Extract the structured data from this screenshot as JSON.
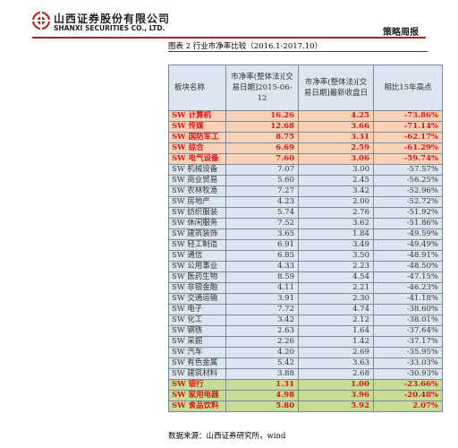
{
  "header": {
    "company_cn": "山西证券股份有限公司",
    "company_en": "SHANXI SECURITIES CO., LTD.",
    "report_type": "策略周报"
  },
  "caption": {
    "label": "图表 2  行业市净率比较（2016.1-2017.10）"
  },
  "table": {
    "headers": [
      "板块名称",
      "市净率(整体法)[交易日期]2015-06-12",
      "市净率(整体法)[交易日期]最新收盘日",
      "相比15年高点"
    ],
    "rows": [
      {
        "name": "SW 计算机",
        "pb_2015": "16.26",
        "pb_latest": "4.25",
        "change": "-73.86%",
        "group": "top"
      },
      {
        "name": "SW 传媒",
        "pb_2015": "12.68",
        "pb_latest": "3.66",
        "change": "-71.14%",
        "group": "top"
      },
      {
        "name": "SW 国防军工",
        "pb_2015": "8.75",
        "pb_latest": "3.31",
        "change": "-62.17%",
        "group": "top"
      },
      {
        "name": "SW 综合",
        "pb_2015": "6.69",
        "pb_latest": "2.59",
        "change": "-61.29%",
        "group": "top"
      },
      {
        "name": "SW 电气设备",
        "pb_2015": "7.60",
        "pb_latest": "3.06",
        "change": "-59.74%",
        "group": "top"
      },
      {
        "name": "SW 机械设备",
        "pb_2015": "7.07",
        "pb_latest": "3.00",
        "change": "-57.57%",
        "group": "plain"
      },
      {
        "name": "SW 商业贸易",
        "pb_2015": "5.60",
        "pb_latest": "2.45",
        "change": "-56.25%",
        "group": "plain"
      },
      {
        "name": "SW 农林牧渔",
        "pb_2015": "7.27",
        "pb_latest": "3.42",
        "change": "-52.96%",
        "group": "plain"
      },
      {
        "name": "SW 房地产",
        "pb_2015": "4.23",
        "pb_latest": "2.00",
        "change": "-52.72%",
        "group": "plain"
      },
      {
        "name": "SW 纺织服装",
        "pb_2015": "5.74",
        "pb_latest": "2.76",
        "change": "-51.92%",
        "group": "plain"
      },
      {
        "name": "SW 休闲服务",
        "pb_2015": "7.52",
        "pb_latest": "3.62",
        "change": "-51.86%",
        "group": "plain"
      },
      {
        "name": "SW 建筑装饰",
        "pb_2015": "3.65",
        "pb_latest": "1.84",
        "change": "-49.59%",
        "group": "plain"
      },
      {
        "name": "SW 轻工制造",
        "pb_2015": "6.91",
        "pb_latest": "3.49",
        "change": "-49.49%",
        "group": "plain"
      },
      {
        "name": "SW 通信",
        "pb_2015": "6.85",
        "pb_latest": "3.50",
        "change": "-48.91%",
        "group": "plain"
      },
      {
        "name": "SW 公用事业",
        "pb_2015": "4.33",
        "pb_latest": "2.23",
        "change": "-48.50%",
        "group": "plain"
      },
      {
        "name": "SW 医药生物",
        "pb_2015": "8.59",
        "pb_latest": "4.54",
        "change": "-47.15%",
        "group": "plain"
      },
      {
        "name": "SW 非银金融",
        "pb_2015": "4.11",
        "pb_latest": "2.21",
        "change": "-46.23%",
        "group": "plain"
      },
      {
        "name": "SW 交通运输",
        "pb_2015": "3.91",
        "pb_latest": "2.30",
        "change": "-41.18%",
        "group": "plain"
      },
      {
        "name": "SW 电子",
        "pb_2015": "7.72",
        "pb_latest": "4.74",
        "change": "-38.60%",
        "group": "plain"
      },
      {
        "name": "SW 化工",
        "pb_2015": "3.42",
        "pb_latest": "2.12",
        "change": "-38.01%",
        "group": "plain"
      },
      {
        "name": "SW 钢铁",
        "pb_2015": "2.63",
        "pb_latest": "1.64",
        "change": "-37.64%",
        "group": "plain"
      },
      {
        "name": "SW 采掘",
        "pb_2015": "2.26",
        "pb_latest": "1.42",
        "change": "-37.17%",
        "group": "plain"
      },
      {
        "name": "SW 汽车",
        "pb_2015": "4.20",
        "pb_latest": "2.69",
        "change": "-35.95%",
        "group": "plain"
      },
      {
        "name": "SW 有色金属",
        "pb_2015": "5.42",
        "pb_latest": "3.63",
        "change": "-33.03%",
        "group": "plain"
      },
      {
        "name": "SW 建筑材料",
        "pb_2015": "3.88",
        "pb_latest": "2.68",
        "change": "-30.93%",
        "group": "plain"
      },
      {
        "name": "SW 银行",
        "pb_2015": "1.31",
        "pb_latest": "1.00",
        "change": "-23.66%",
        "group": "bottom"
      },
      {
        "name": "SW 家用电器",
        "pb_2015": "4.98",
        "pb_latest": "3.96",
        "change": "-20.48%",
        "group": "bottom"
      },
      {
        "name": "SW 食品饮料",
        "pb_2015": "5.80",
        "pb_latest": "5.92",
        "change": "2.07%",
        "group": "bottom"
      }
    ]
  },
  "source": {
    "text": "数据来源：山西证券研究所，wind"
  },
  "colors": {
    "brand_red": "#b51c1c",
    "highlight_text": "#d91515",
    "top_rows_bg": "#f8d1b6",
    "bottom_rows_bg": "#c7dd96",
    "plain_rows_bg": "#dce6f0"
  }
}
